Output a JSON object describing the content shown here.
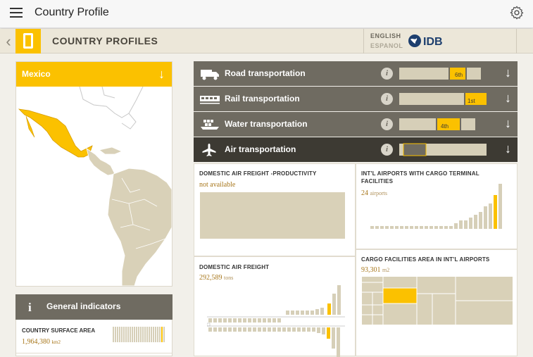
{
  "appbar": {
    "title": "Country Profile"
  },
  "header": {
    "section": "COUNTRY PROFILES",
    "lang_en": "ENGLISH",
    "lang_es": "ESPANOL",
    "brand": "IDB"
  },
  "country": {
    "name": "Mexico"
  },
  "general": {
    "title": "General indicators",
    "items": [
      {
        "name": "COUNTRY SURFACE AREA",
        "value": "1,964,380",
        "unit": "km2"
      }
    ]
  },
  "transport": [
    {
      "label": "Road transportation",
      "rank": "6th",
      "icon": "truck-icon"
    },
    {
      "label": "Rail transportation",
      "rank": "1st",
      "icon": "train-icon"
    },
    {
      "label": "Water transportation",
      "rank": "4th",
      "icon": "ship-icon"
    },
    {
      "label": "Air transportation",
      "rank": "",
      "icon": "airplane-icon"
    }
  ],
  "air": {
    "productivity": {
      "title": "DOMESTIC AIR FREIGHT -PRODUCTIVITY",
      "value": "not available"
    },
    "freight": {
      "title": "DOMESTIC AIR FREIGHT",
      "value": "292,589",
      "unit": "tons"
    },
    "airports": {
      "title": "INT'L AIRPORTS WITH CARGO TERMINAL FACILITIES",
      "value": "24",
      "unit": "airports"
    },
    "cargo_area": {
      "title": "CARGO FACILITIES AREA IN INT'L AIRPORTS",
      "value": "93,301",
      "unit": "m2"
    }
  },
  "colors": {
    "accent": "#fbc100",
    "bar": "#6f6b61",
    "bar_active": "#3d3a33",
    "value": "#a7761a",
    "map_land": "#d9d1b8"
  }
}
